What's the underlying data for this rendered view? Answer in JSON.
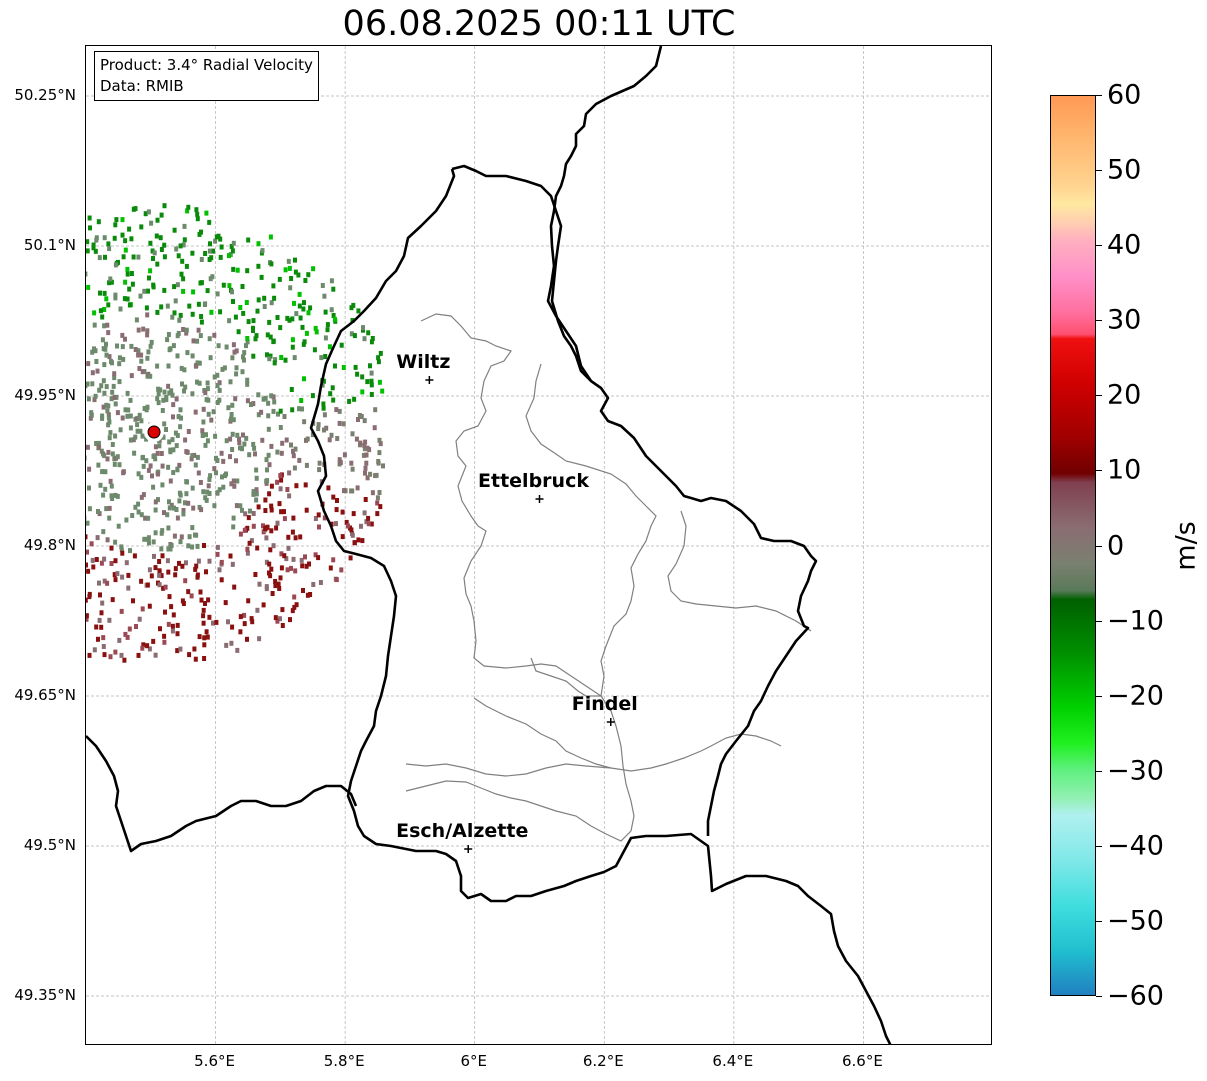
{
  "title": "06.08.2025 00:11 UTC",
  "info_box": {
    "product": "Product: 3.4° Radial Velocity",
    "data": "Data: RMIB"
  },
  "axes": {
    "lat_ticks": [
      "50.25°N",
      "50.1°N",
      "49.95°N",
      "49.8°N",
      "49.65°N",
      "49.5°N",
      "49.35°N"
    ],
    "lat_values": [
      50.25,
      50.1,
      49.95,
      49.8,
      49.65,
      49.5,
      49.35
    ],
    "lon_ticks": [
      "5.6°E",
      "5.8°E",
      "6°E",
      "6.2°E",
      "6.4°E",
      "6.6°E"
    ],
    "lon_values": [
      5.6,
      5.8,
      6.0,
      6.2,
      6.4,
      6.6
    ],
    "lon_range": [
      5.4,
      6.8
    ],
    "lat_range": [
      49.3,
      50.3
    ],
    "gridlines": true
  },
  "colorbar": {
    "unit": "m/s",
    "ticks": [
      "60",
      "50",
      "40",
      "30",
      "20",
      "10",
      "0",
      "−10",
      "−20",
      "−30",
      "−40",
      "−50",
      "−60"
    ],
    "tick_values": [
      60,
      50,
      40,
      30,
      20,
      10,
      0,
      -10,
      -20,
      -30,
      -40,
      -50,
      -60
    ],
    "range": [
      -60,
      60
    ]
  },
  "cities": [
    {
      "name": "Wiltz",
      "lon": 5.93,
      "lat": 49.966
    },
    {
      "name": "Ettelbruck",
      "lon": 6.1,
      "lat": 49.847
    },
    {
      "name": "Findel",
      "lon": 6.21,
      "lat": 49.624
    },
    {
      "name": "Esch/Alzette",
      "lon": 5.99,
      "lat": 49.497
    }
  ],
  "radar_site": {
    "lon": 5.505,
    "lat": 49.914,
    "color": "#dd0000"
  },
  "colors": {
    "border": "#000000",
    "canton_lines": "#808080",
    "grid": "#b0b0b0"
  }
}
